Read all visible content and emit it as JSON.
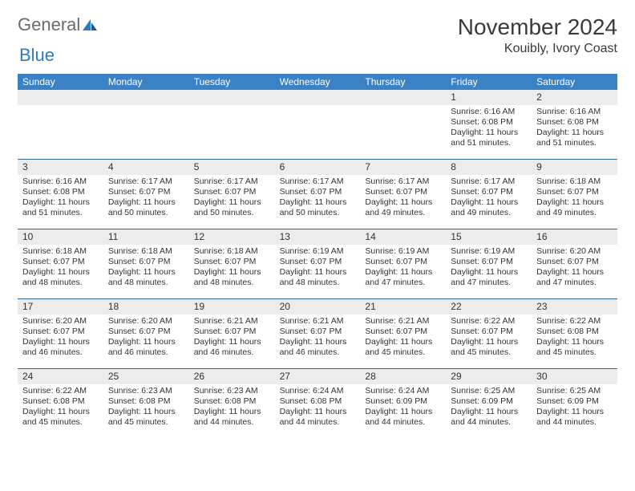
{
  "logo": {
    "text1": "General",
    "text2": "Blue"
  },
  "title": "November 2024",
  "subtitle": "Kouibly, Ivory Coast",
  "colors": {
    "header_bg": "#3b82c4",
    "header_text": "#ffffff",
    "row_divider": "#2b6aa0",
    "daynum_bg": "#ececec",
    "text": "#333333",
    "logo_gray": "#6b6b6b",
    "logo_blue": "#2b7cc0",
    "background": "#ffffff"
  },
  "day_headers": [
    "Sunday",
    "Monday",
    "Tuesday",
    "Wednesday",
    "Thursday",
    "Friday",
    "Saturday"
  ],
  "weeks": [
    [
      {
        "n": "",
        "sr": "",
        "ss": "",
        "dl1": "",
        "dl2": ""
      },
      {
        "n": "",
        "sr": "",
        "ss": "",
        "dl1": "",
        "dl2": ""
      },
      {
        "n": "",
        "sr": "",
        "ss": "",
        "dl1": "",
        "dl2": ""
      },
      {
        "n": "",
        "sr": "",
        "ss": "",
        "dl1": "",
        "dl2": ""
      },
      {
        "n": "",
        "sr": "",
        "ss": "",
        "dl1": "",
        "dl2": ""
      },
      {
        "n": "1",
        "sr": "Sunrise: 6:16 AM",
        "ss": "Sunset: 6:08 PM",
        "dl1": "Daylight: 11 hours",
        "dl2": "and 51 minutes."
      },
      {
        "n": "2",
        "sr": "Sunrise: 6:16 AM",
        "ss": "Sunset: 6:08 PM",
        "dl1": "Daylight: 11 hours",
        "dl2": "and 51 minutes."
      }
    ],
    [
      {
        "n": "3",
        "sr": "Sunrise: 6:16 AM",
        "ss": "Sunset: 6:08 PM",
        "dl1": "Daylight: 11 hours",
        "dl2": "and 51 minutes."
      },
      {
        "n": "4",
        "sr": "Sunrise: 6:17 AM",
        "ss": "Sunset: 6:07 PM",
        "dl1": "Daylight: 11 hours",
        "dl2": "and 50 minutes."
      },
      {
        "n": "5",
        "sr": "Sunrise: 6:17 AM",
        "ss": "Sunset: 6:07 PM",
        "dl1": "Daylight: 11 hours",
        "dl2": "and 50 minutes."
      },
      {
        "n": "6",
        "sr": "Sunrise: 6:17 AM",
        "ss": "Sunset: 6:07 PM",
        "dl1": "Daylight: 11 hours",
        "dl2": "and 50 minutes."
      },
      {
        "n": "7",
        "sr": "Sunrise: 6:17 AM",
        "ss": "Sunset: 6:07 PM",
        "dl1": "Daylight: 11 hours",
        "dl2": "and 49 minutes."
      },
      {
        "n": "8",
        "sr": "Sunrise: 6:17 AM",
        "ss": "Sunset: 6:07 PM",
        "dl1": "Daylight: 11 hours",
        "dl2": "and 49 minutes."
      },
      {
        "n": "9",
        "sr": "Sunrise: 6:18 AM",
        "ss": "Sunset: 6:07 PM",
        "dl1": "Daylight: 11 hours",
        "dl2": "and 49 minutes."
      }
    ],
    [
      {
        "n": "10",
        "sr": "Sunrise: 6:18 AM",
        "ss": "Sunset: 6:07 PM",
        "dl1": "Daylight: 11 hours",
        "dl2": "and 48 minutes."
      },
      {
        "n": "11",
        "sr": "Sunrise: 6:18 AM",
        "ss": "Sunset: 6:07 PM",
        "dl1": "Daylight: 11 hours",
        "dl2": "and 48 minutes."
      },
      {
        "n": "12",
        "sr": "Sunrise: 6:18 AM",
        "ss": "Sunset: 6:07 PM",
        "dl1": "Daylight: 11 hours",
        "dl2": "and 48 minutes."
      },
      {
        "n": "13",
        "sr": "Sunrise: 6:19 AM",
        "ss": "Sunset: 6:07 PM",
        "dl1": "Daylight: 11 hours",
        "dl2": "and 48 minutes."
      },
      {
        "n": "14",
        "sr": "Sunrise: 6:19 AM",
        "ss": "Sunset: 6:07 PM",
        "dl1": "Daylight: 11 hours",
        "dl2": "and 47 minutes."
      },
      {
        "n": "15",
        "sr": "Sunrise: 6:19 AM",
        "ss": "Sunset: 6:07 PM",
        "dl1": "Daylight: 11 hours",
        "dl2": "and 47 minutes."
      },
      {
        "n": "16",
        "sr": "Sunrise: 6:20 AM",
        "ss": "Sunset: 6:07 PM",
        "dl1": "Daylight: 11 hours",
        "dl2": "and 47 minutes."
      }
    ],
    [
      {
        "n": "17",
        "sr": "Sunrise: 6:20 AM",
        "ss": "Sunset: 6:07 PM",
        "dl1": "Daylight: 11 hours",
        "dl2": "and 46 minutes."
      },
      {
        "n": "18",
        "sr": "Sunrise: 6:20 AM",
        "ss": "Sunset: 6:07 PM",
        "dl1": "Daylight: 11 hours",
        "dl2": "and 46 minutes."
      },
      {
        "n": "19",
        "sr": "Sunrise: 6:21 AM",
        "ss": "Sunset: 6:07 PM",
        "dl1": "Daylight: 11 hours",
        "dl2": "and 46 minutes."
      },
      {
        "n": "20",
        "sr": "Sunrise: 6:21 AM",
        "ss": "Sunset: 6:07 PM",
        "dl1": "Daylight: 11 hours",
        "dl2": "and 46 minutes."
      },
      {
        "n": "21",
        "sr": "Sunrise: 6:21 AM",
        "ss": "Sunset: 6:07 PM",
        "dl1": "Daylight: 11 hours",
        "dl2": "and 45 minutes."
      },
      {
        "n": "22",
        "sr": "Sunrise: 6:22 AM",
        "ss": "Sunset: 6:07 PM",
        "dl1": "Daylight: 11 hours",
        "dl2": "and 45 minutes."
      },
      {
        "n": "23",
        "sr": "Sunrise: 6:22 AM",
        "ss": "Sunset: 6:08 PM",
        "dl1": "Daylight: 11 hours",
        "dl2": "and 45 minutes."
      }
    ],
    [
      {
        "n": "24",
        "sr": "Sunrise: 6:22 AM",
        "ss": "Sunset: 6:08 PM",
        "dl1": "Daylight: 11 hours",
        "dl2": "and 45 minutes."
      },
      {
        "n": "25",
        "sr": "Sunrise: 6:23 AM",
        "ss": "Sunset: 6:08 PM",
        "dl1": "Daylight: 11 hours",
        "dl2": "and 45 minutes."
      },
      {
        "n": "26",
        "sr": "Sunrise: 6:23 AM",
        "ss": "Sunset: 6:08 PM",
        "dl1": "Daylight: 11 hours",
        "dl2": "and 44 minutes."
      },
      {
        "n": "27",
        "sr": "Sunrise: 6:24 AM",
        "ss": "Sunset: 6:08 PM",
        "dl1": "Daylight: 11 hours",
        "dl2": "and 44 minutes."
      },
      {
        "n": "28",
        "sr": "Sunrise: 6:24 AM",
        "ss": "Sunset: 6:09 PM",
        "dl1": "Daylight: 11 hours",
        "dl2": "and 44 minutes."
      },
      {
        "n": "29",
        "sr": "Sunrise: 6:25 AM",
        "ss": "Sunset: 6:09 PM",
        "dl1": "Daylight: 11 hours",
        "dl2": "and 44 minutes."
      },
      {
        "n": "30",
        "sr": "Sunrise: 6:25 AM",
        "ss": "Sunset: 6:09 PM",
        "dl1": "Daylight: 11 hours",
        "dl2": "and 44 minutes."
      }
    ]
  ]
}
